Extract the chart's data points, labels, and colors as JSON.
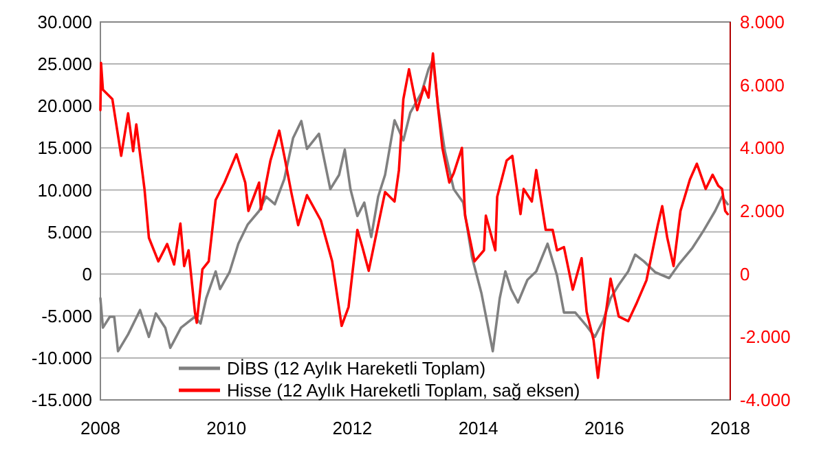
{
  "chart_data": {
    "type": "line",
    "xlim": [
      2008,
      2018
    ],
    "xticks": [
      2008,
      2010,
      2012,
      2014,
      2016,
      2018
    ],
    "ylim": [
      -15000,
      30000
    ],
    "yticks": [
      {
        "value": -15000,
        "label": "-15.000"
      },
      {
        "value": -10000,
        "label": "-10.000"
      },
      {
        "value": -5000,
        "label": "-5.000"
      },
      0,
      {
        "value": 5000,
        "label": "5.000"
      },
      {
        "value": 10000,
        "label": "10.000"
      },
      {
        "value": 15000,
        "label": "15.000"
      },
      {
        "value": 20000,
        "label": "20.000"
      },
      {
        "value": 25000,
        "label": "25.000"
      },
      {
        "value": 30000,
        "label": "30.000"
      }
    ],
    "y2lim": [
      -4000,
      8000
    ],
    "y2ticks": [
      {
        "value": -4000,
        "label": "-4.000"
      },
      {
        "value": -2000,
        "label": "-2.000"
      },
      0,
      {
        "value": 2000,
        "label": "2.000"
      },
      {
        "value": 4000,
        "label": "4.000"
      },
      {
        "value": 6000,
        "label": "6.000"
      },
      {
        "value": 8000,
        "label": "8.000"
      }
    ],
    "grid": "y",
    "legend": "bottom",
    "marker": "none",
    "line_style": "solid",
    "series": [
      {
        "name": "DİBS (12 Aylık Hareketli Toplam)",
        "color": "#808080",
        "x": [
          2008.0,
          2008.04,
          2008.15,
          2008.22,
          2008.28,
          2008.44,
          2008.63,
          2008.77,
          2008.88,
          2009.03,
          2009.11,
          2009.28,
          2009.5,
          2009.59,
          2009.68,
          2009.83,
          2009.9,
          2010.05,
          2010.19,
          2010.34,
          2010.52,
          2010.63,
          2010.77,
          2010.92,
          2011.06,
          2011.19,
          2011.28,
          2011.47,
          2011.65,
          2011.79,
          2011.88,
          2011.97,
          2012.08,
          2012.19,
          2012.3,
          2012.41,
          2012.52,
          2012.67,
          2012.81,
          2012.92,
          2013.1,
          2013.21,
          2013.28,
          2013.36,
          2013.47,
          2013.61,
          2013.76,
          2013.9,
          2014.05,
          2014.23,
          2014.34,
          2014.43,
          2014.52,
          2014.63,
          2014.78,
          2014.92,
          2015.1,
          2015.25,
          2015.36,
          2015.54,
          2015.72,
          2015.85,
          2015.98,
          2016.1,
          2016.23,
          2016.38,
          2016.49,
          2016.63,
          2016.81,
          2017.03,
          2017.18,
          2017.4,
          2017.58,
          2017.76,
          2017.87,
          2017.96
        ],
        "values": [
          -2900,
          -6400,
          -5100,
          -5100,
          -9200,
          -7200,
          -4300,
          -7500,
          -4700,
          -6400,
          -8800,
          -6400,
          -5100,
          -5900,
          -2900,
          300,
          -1800,
          200,
          3600,
          5900,
          7500,
          9200,
          8300,
          11300,
          16200,
          18200,
          14900,
          16700,
          10100,
          11800,
          14800,
          10100,
          6900,
          8500,
          4400,
          9200,
          11800,
          18300,
          15900,
          19200,
          21600,
          24400,
          25500,
          20000,
          14600,
          10100,
          8500,
          2000,
          -2300,
          -9200,
          -2900,
          300,
          -1800,
          -3400,
          -700,
          300,
          3600,
          -200,
          -4600,
          -4600,
          -6200,
          -7500,
          -5600,
          -2900,
          -1300,
          300,
          2300,
          1500,
          200,
          -500,
          1100,
          3100,
          5200,
          7500,
          9200,
          8300
        ]
      },
      {
        "name": "Hisse (12 Aylık Hareketli Toplam, sağ eksen)",
        "color": "#ff0000",
        "axis": "y2",
        "x": [
          2008.0,
          2008.01,
          2008.04,
          2008.19,
          2008.33,
          2008.44,
          2008.52,
          2008.57,
          2008.7,
          2008.77,
          2008.92,
          2009.06,
          2009.17,
          2009.27,
          2009.33,
          2009.4,
          2009.5,
          2009.53,
          2009.62,
          2009.72,
          2009.83,
          2009.97,
          2010.16,
          2010.3,
          2010.35,
          2010.52,
          2010.55,
          2010.7,
          2010.84,
          2010.92,
          2011.03,
          2011.14,
          2011.28,
          2011.5,
          2011.68,
          2011.83,
          2011.94,
          2012.08,
          2012.16,
          2012.26,
          2012.41,
          2012.52,
          2012.67,
          2012.74,
          2012.81,
          2012.9,
          2013.03,
          2013.14,
          2013.21,
          2013.28,
          2013.36,
          2013.43,
          2013.54,
          2013.61,
          2013.74,
          2013.79,
          2013.94,
          2014.09,
          2014.12,
          2014.27,
          2014.3,
          2014.45,
          2014.54,
          2014.67,
          2014.72,
          2014.85,
          2014.92,
          2015.07,
          2015.18,
          2015.25,
          2015.36,
          2015.5,
          2015.64,
          2015.72,
          2015.83,
          2015.9,
          2015.98,
          2016.1,
          2016.23,
          2016.38,
          2016.52,
          2016.67,
          2016.85,
          2016.92,
          2017.0,
          2017.1,
          2017.21,
          2017.36,
          2017.47,
          2017.61,
          2017.72,
          2017.81,
          2017.87,
          2017.92,
          2017.96
        ],
        "values": [
          5200,
          6700,
          5850,
          5550,
          3750,
          5100,
          3900,
          4750,
          2700,
          1150,
          400,
          950,
          300,
          1600,
          250,
          750,
          -1200,
          -1550,
          150,
          400,
          2350,
          2900,
          3800,
          2900,
          2000,
          2900,
          2050,
          3600,
          4550,
          3750,
          2600,
          1550,
          2500,
          1700,
          400,
          -1650,
          -1050,
          1400,
          850,
          100,
          1550,
          2600,
          2300,
          3300,
          5550,
          6500,
          5200,
          5950,
          5600,
          7000,
          5300,
          4000,
          2900,
          3200,
          4000,
          1850,
          400,
          750,
          1850,
          750,
          2450,
          3600,
          3750,
          1900,
          2700,
          2300,
          3300,
          1400,
          1400,
          750,
          850,
          -500,
          500,
          -1200,
          -2100,
          -3300,
          -1900,
          -150,
          -1350,
          -1500,
          -900,
          -200,
          1550,
          2150,
          1150,
          250,
          2000,
          3000,
          3500,
          2700,
          3150,
          2800,
          2700,
          2000,
          1900
        ]
      }
    ]
  }
}
